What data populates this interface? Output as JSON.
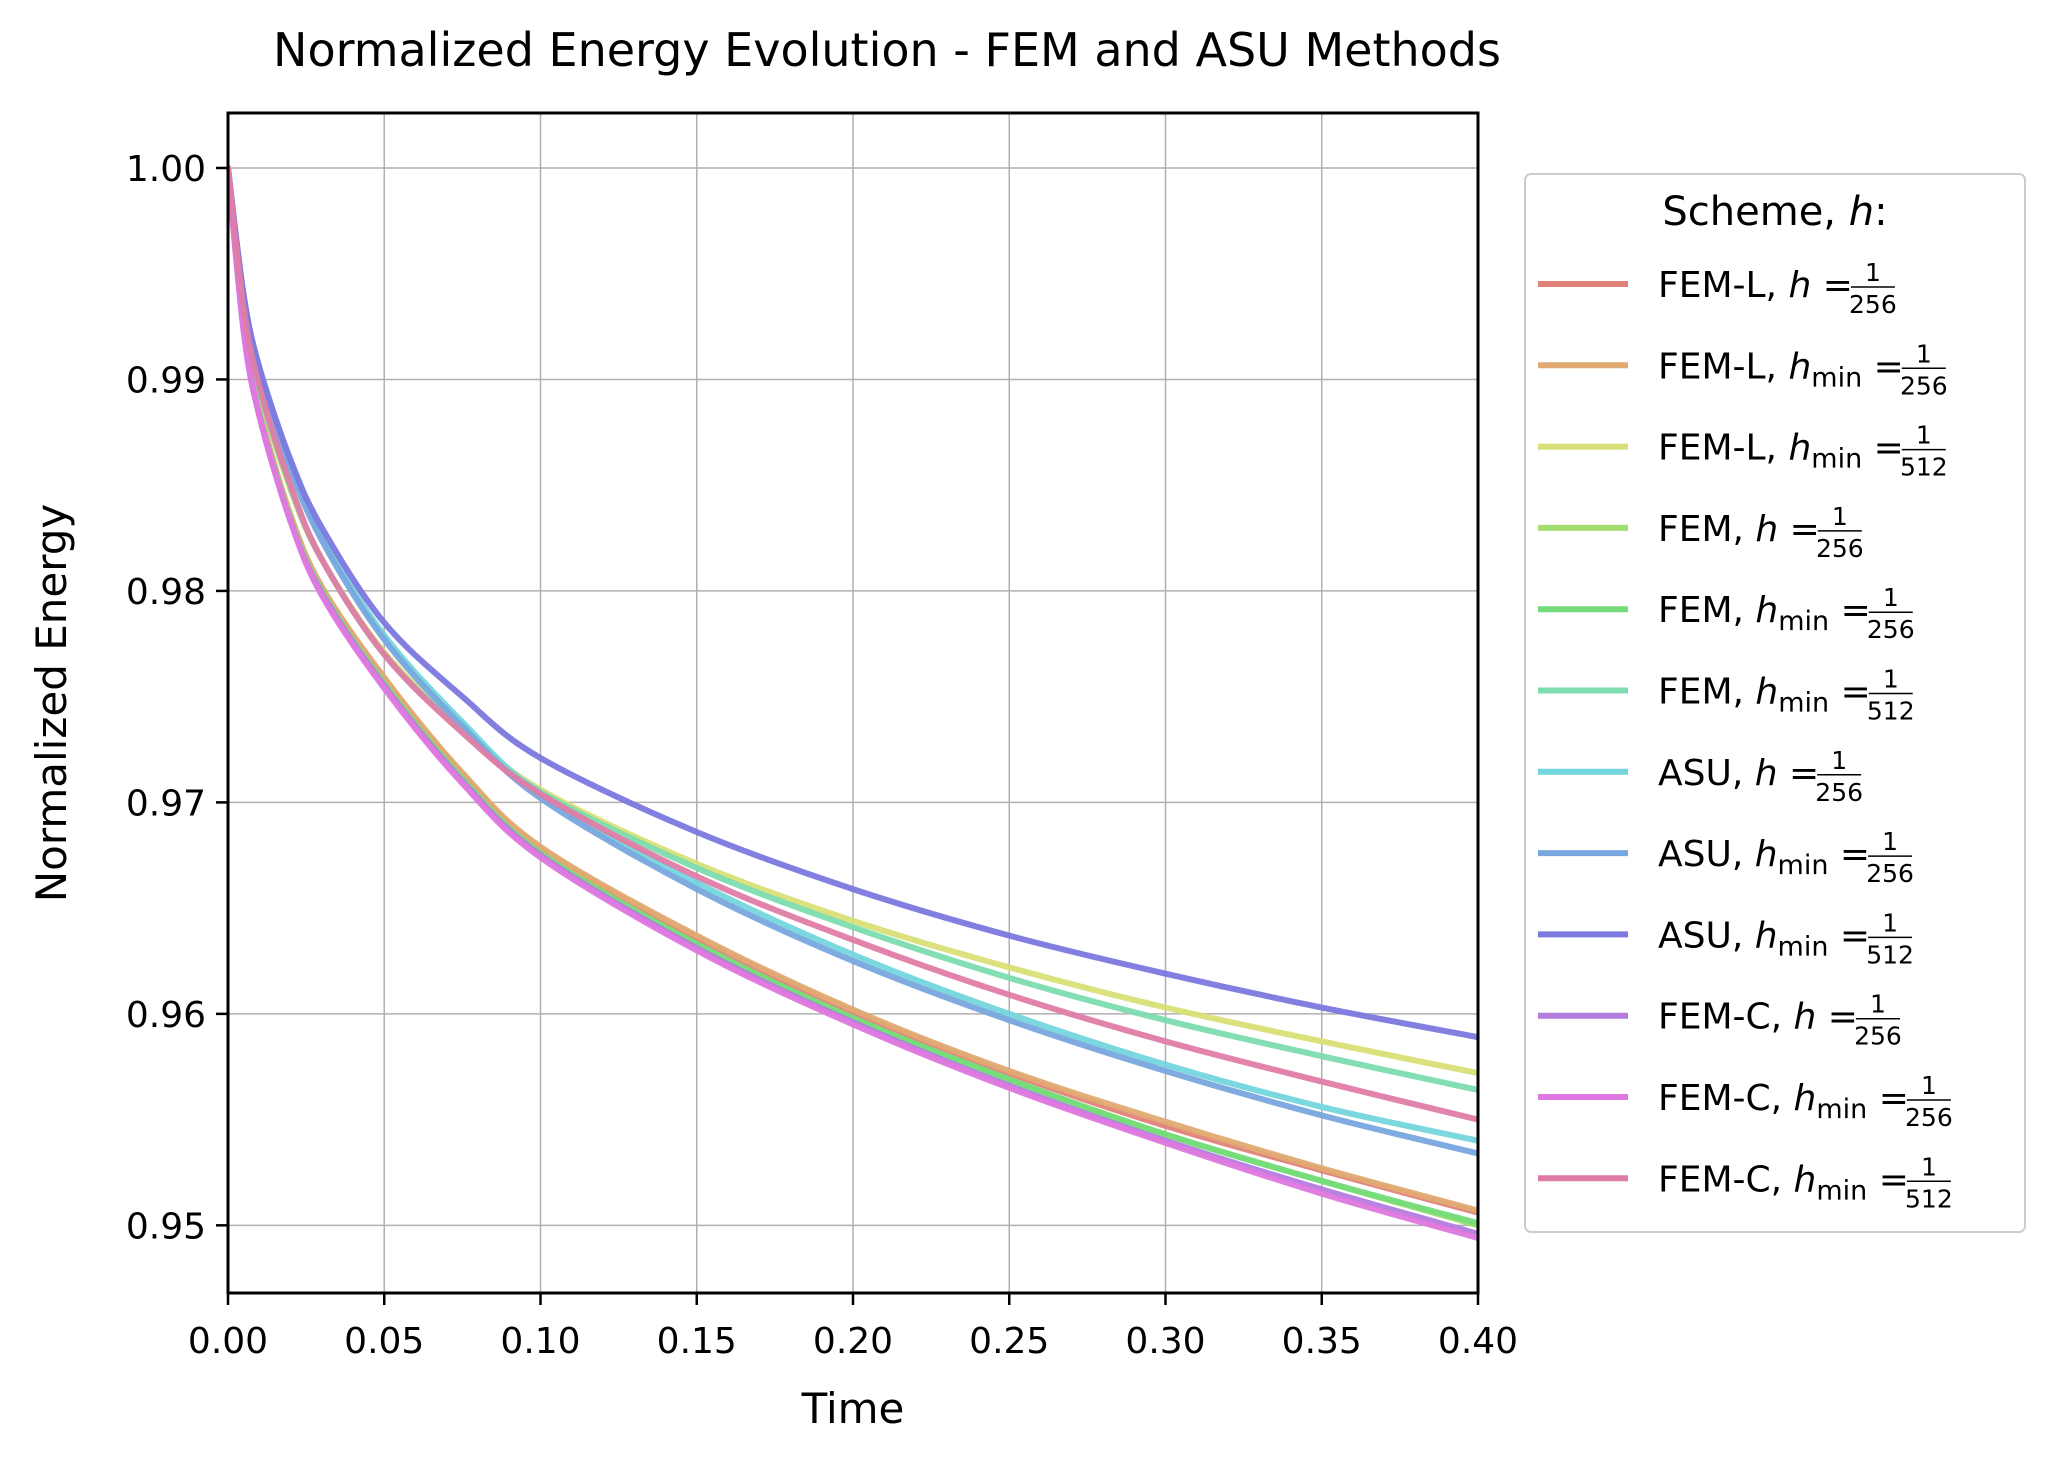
{
  "chart_data": {
    "type": "line",
    "title": "Normalized Energy Evolution - FEM and ASU Methods",
    "xlabel": "Time",
    "ylabel": "Normalized Energy",
    "xlim": [
      0.0,
      0.4
    ],
    "ylim": [
      0.9468,
      1.0026
    ],
    "grid": true,
    "x_ticks": [
      0.0,
      0.05,
      0.1,
      0.15,
      0.2,
      0.25,
      0.3,
      0.35,
      0.4
    ],
    "x_tick_labels": [
      "0.00",
      "0.05",
      "0.10",
      "0.15",
      "0.20",
      "0.25",
      "0.30",
      "0.35",
      "0.40"
    ],
    "y_ticks": [
      0.95,
      0.96,
      0.97,
      0.98,
      0.99,
      1.0
    ],
    "y_tick_labels": [
      "0.95",
      "0.96",
      "0.97",
      "0.98",
      "0.99",
      "1.00"
    ],
    "legend": {
      "title_prefix": "Scheme, ",
      "title_var": "h",
      "title_suffix": ":",
      "placement": "outside-right"
    },
    "x": [
      0.0,
      0.005,
      0.01,
      0.02,
      0.03,
      0.05,
      0.075,
      0.1,
      0.15,
      0.2,
      0.25,
      0.3,
      0.35,
      0.4
    ],
    "series": [
      {
        "name": "FEM-L, h = 1/256",
        "scheme": "FEM-L",
        "hsym": "h",
        "hsub": "",
        "den": "256",
        "color": "#e0827a",
        "values": [
          1.0,
          0.9925,
          0.9885,
          0.9835,
          0.9801,
          0.9758,
          0.9713,
          0.9678,
          0.9636,
          0.9601,
          0.9572,
          0.9547,
          0.9526,
          0.9506
        ]
      },
      {
        "name": "FEM-L, h_min = 1/256",
        "scheme": "FEM-L",
        "hsym": "h",
        "hsub": "min",
        "den": "256",
        "color": "#e0aa72",
        "values": [
          1.0,
          0.9926,
          0.9886,
          0.9836,
          0.9802,
          0.9759,
          0.9714,
          0.9679,
          0.9637,
          0.9602,
          0.9573,
          0.9549,
          0.9527,
          0.9507
        ]
      },
      {
        "name": "FEM-L, h_min = 1/512",
        "scheme": "FEM-L",
        "hsym": "h",
        "hsub": "min",
        "den": "512",
        "color": "#d8df76",
        "values": [
          1.0,
          0.9932,
          0.9895,
          0.9848,
          0.9815,
          0.9771,
          0.9735,
          0.9706,
          0.9671,
          0.9644,
          0.9622,
          0.9603,
          0.9587,
          0.9572
        ]
      },
      {
        "name": "FEM, h = 1/256",
        "scheme": "FEM",
        "hsym": "h",
        "hsub": "",
        "den": "256",
        "color": "#a3dd71",
        "values": [
          1.0,
          0.9924,
          0.9884,
          0.9834,
          0.98,
          0.9756,
          0.9711,
          0.9676,
          0.9633,
          0.9598,
          0.9569,
          0.9543,
          0.9521,
          0.95
        ]
      },
      {
        "name": "FEM, h_min = 1/256",
        "scheme": "FEM",
        "hsym": "h",
        "hsub": "min",
        "den": "256",
        "color": "#74dc7b",
        "values": [
          1.0,
          0.9924,
          0.9884,
          0.9834,
          0.98,
          0.9756,
          0.9711,
          0.9676,
          0.9633,
          0.9598,
          0.9569,
          0.9543,
          0.9521,
          0.9501
        ]
      },
      {
        "name": "FEM, h_min = 1/512",
        "scheme": "FEM",
        "hsym": "h",
        "hsub": "min",
        "den": "512",
        "color": "#7ddcb0",
        "values": [
          1.0,
          0.9933,
          0.9896,
          0.9849,
          0.9815,
          0.977,
          0.9734,
          0.9705,
          0.9669,
          0.9641,
          0.9617,
          0.9597,
          0.958,
          0.9564
        ]
      },
      {
        "name": "ASU, h = 1/256",
        "scheme": "ASU",
        "hsym": "h",
        "hsub": "",
        "den": "256",
        "color": "#73d6dc",
        "values": [
          1.0,
          0.994,
          0.9905,
          0.986,
          0.9826,
          0.9779,
          0.9738,
          0.9704,
          0.9662,
          0.9628,
          0.96,
          0.9576,
          0.9556,
          0.954
        ]
      },
      {
        "name": "ASU, h_min = 1/256",
        "scheme": "ASU",
        "hsym": "h",
        "hsub": "min",
        "den": "256",
        "color": "#78a6de",
        "values": [
          1.0,
          0.9938,
          0.9903,
          0.9858,
          0.9824,
          0.9777,
          0.9736,
          0.9702,
          0.9659,
          0.9625,
          0.9597,
          0.9573,
          0.9552,
          0.9534
        ]
      },
      {
        "name": "ASU, h_min = 1/512",
        "scheme": "ASU",
        "hsym": "h",
        "hsub": "min",
        "den": "512",
        "color": "#7b78df",
        "values": [
          1.0,
          0.994,
          0.9906,
          0.9862,
          0.983,
          0.9785,
          0.975,
          0.9721,
          0.9686,
          0.9659,
          0.9637,
          0.9619,
          0.9603,
          0.9589
        ]
      },
      {
        "name": "FEM-C, h = 1/256",
        "scheme": "FEM-C",
        "hsym": "h",
        "hsub": "",
        "den": "256",
        "color": "#b37cdf",
        "values": [
          1.0,
          0.9923,
          0.9883,
          0.9833,
          0.9799,
          0.9755,
          0.971,
          0.9675,
          0.9631,
          0.9596,
          0.9566,
          0.954,
          0.9517,
          0.9496
        ]
      },
      {
        "name": "FEM-C, h_min = 1/256",
        "scheme": "FEM-C",
        "hsym": "h",
        "hsub": "min",
        "den": "256",
        "color": "#df78df",
        "values": [
          1.0,
          0.9923,
          0.9883,
          0.9833,
          0.9798,
          0.9754,
          0.9709,
          0.9674,
          0.963,
          0.9595,
          0.9565,
          0.9539,
          0.9515,
          0.9494
        ]
      },
      {
        "name": "FEM-C, h_min = 1/512",
        "scheme": "FEM-C",
        "hsym": "h",
        "hsub": "min",
        "den": "512",
        "color": "#df7ca6",
        "values": [
          1.0,
          0.9934,
          0.9897,
          0.985,
          0.9815,
          0.977,
          0.9733,
          0.9704,
          0.9665,
          0.9635,
          0.9609,
          0.9587,
          0.9568,
          0.955
        ]
      }
    ]
  }
}
